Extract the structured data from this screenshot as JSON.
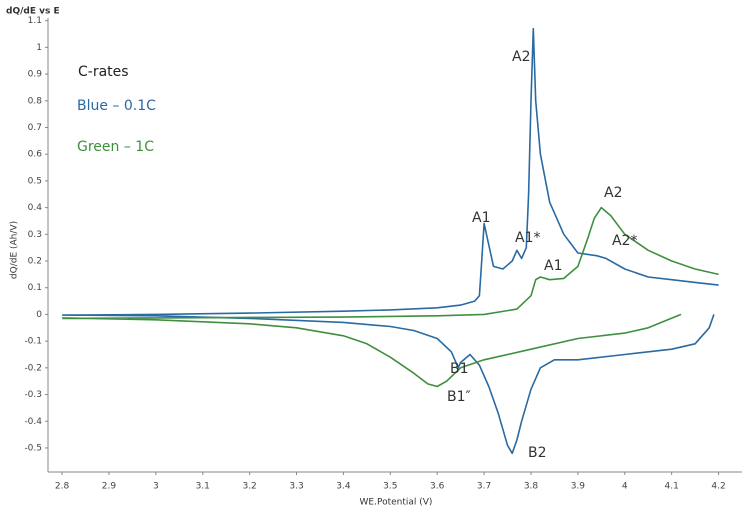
{
  "chart_data": {
    "type": "line",
    "title": "dQ/dE vs E",
    "x_label": "WE.Potential (V)",
    "y_label": "dQ/dE (Ah/V)",
    "legend_title": "C-rates",
    "xlim": [
      2.77,
      4.25
    ],
    "ylim": [
      -0.59,
      1.11
    ],
    "xticks": [
      2.8,
      2.9,
      3,
      3.1,
      3.2,
      3.3,
      3.4,
      3.5,
      3.6,
      3.7,
      3.8,
      3.9,
      4,
      4.1,
      4.2
    ],
    "yticks": [
      -0.5,
      -0.4,
      -0.3,
      -0.2,
      -0.1,
      0,
      0.1,
      0.2,
      0.3,
      0.4,
      0.5,
      0.6,
      0.7,
      0.8,
      0.9,
      1,
      1.1
    ],
    "grid": false,
    "series": [
      {
        "name": "Blue – 0.1C",
        "color": "#2a6aa3",
        "x": [
          2.8,
          3.0,
          3.2,
          3.4,
          3.5,
          3.6,
          3.65,
          3.68,
          3.69,
          3.695,
          3.7,
          3.71,
          3.72,
          3.74,
          3.76,
          3.77,
          3.78,
          3.79,
          3.795,
          3.8,
          3.805,
          3.81,
          3.82,
          3.84,
          3.87,
          3.9,
          3.94,
          3.96,
          4.0,
          4.05,
          4.1,
          4.15,
          4.2,
          null,
          4.19,
          4.18,
          4.15,
          4.1,
          4.0,
          3.9,
          3.85,
          3.82,
          3.8,
          3.78,
          3.77,
          3.76,
          3.75,
          3.73,
          3.71,
          3.69,
          3.67,
          3.65,
          3.645,
          3.63,
          3.6,
          3.55,
          3.5,
          3.4,
          3.2,
          3.0,
          2.8
        ],
        "values": [
          -0.003,
          0.0,
          0.005,
          0.012,
          0.017,
          0.025,
          0.035,
          0.05,
          0.07,
          0.2,
          0.34,
          0.26,
          0.18,
          0.17,
          0.2,
          0.24,
          0.21,
          0.25,
          0.45,
          0.8,
          1.07,
          0.8,
          0.6,
          0.42,
          0.3,
          0.23,
          0.22,
          0.21,
          0.17,
          0.14,
          0.13,
          0.12,
          0.11,
          null,
          0.0,
          -0.05,
          -0.11,
          -0.13,
          -0.15,
          -0.17,
          -0.17,
          -0.2,
          -0.28,
          -0.4,
          -0.47,
          -0.52,
          -0.49,
          -0.37,
          -0.27,
          -0.19,
          -0.15,
          -0.18,
          -0.2,
          -0.14,
          -0.09,
          -0.06,
          -0.045,
          -0.03,
          -0.015,
          -0.005,
          -0.002
        ]
      },
      {
        "name": "Green – 1C",
        "color": "#3f8f3f",
        "x": [
          2.8,
          3.0,
          3.4,
          3.6,
          3.7,
          3.77,
          3.8,
          3.81,
          3.82,
          3.84,
          3.87,
          3.9,
          3.92,
          3.935,
          3.95,
          3.97,
          4.0,
          4.05,
          4.1,
          4.15,
          4.2,
          null,
          4.12,
          4.05,
          4.0,
          3.9,
          3.8,
          3.7,
          3.65,
          3.62,
          3.6,
          3.58,
          3.55,
          3.5,
          3.45,
          3.4,
          3.3,
          3.2,
          3.0,
          2.8
        ],
        "values": [
          -0.015,
          -0.013,
          -0.01,
          -0.005,
          0.0,
          0.02,
          0.07,
          0.13,
          0.14,
          0.13,
          0.135,
          0.18,
          0.28,
          0.36,
          0.4,
          0.37,
          0.3,
          0.24,
          0.2,
          0.17,
          0.15,
          null,
          0.0,
          -0.05,
          -0.07,
          -0.09,
          -0.13,
          -0.17,
          -0.2,
          -0.25,
          -0.27,
          -0.26,
          -0.22,
          -0.16,
          -0.11,
          -0.08,
          -0.05,
          -0.035,
          -0.02,
          -0.013
        ]
      }
    ],
    "annotations": [
      "A2",
      "A1",
      "A1*",
      "A1",
      "A2",
      "A2*",
      "B1",
      "B1″",
      "B2"
    ]
  }
}
